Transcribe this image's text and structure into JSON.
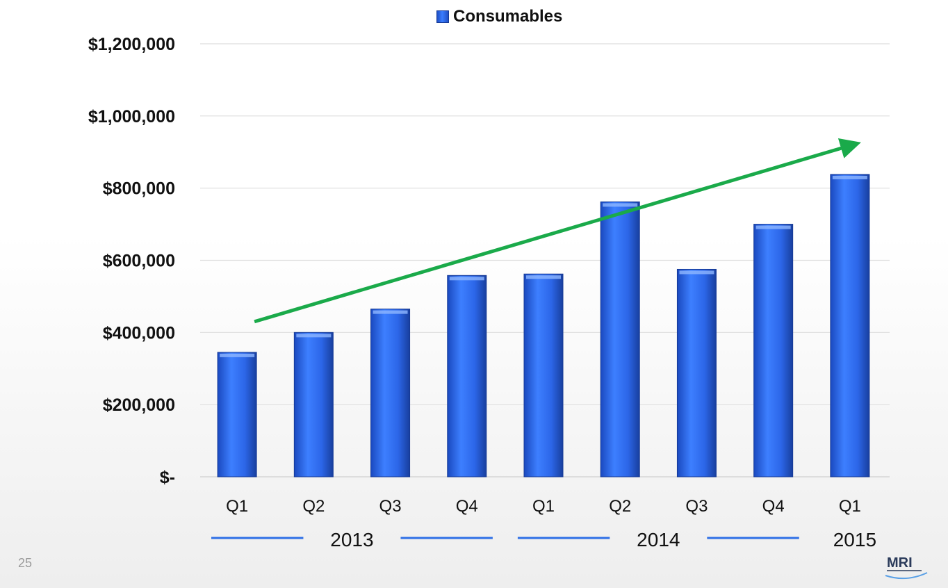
{
  "chart_data": {
    "type": "bar",
    "legend": [
      "Consumables"
    ],
    "categories": [
      "Q1",
      "Q2",
      "Q3",
      "Q4",
      "Q1",
      "Q2",
      "Q3",
      "Q4",
      "Q1"
    ],
    "years": [
      "2013",
      "2014",
      "2015"
    ],
    "series": [
      {
        "name": "Consumables",
        "values": [
          345000,
          400000,
          465000,
          558000,
          562000,
          762000,
          575000,
          700000,
          838000
        ]
      }
    ],
    "yticks": [
      "$-",
      "$200,000",
      "$400,000",
      "$600,000",
      "$800,000",
      "$1,000,000",
      "$1,200,000"
    ],
    "ylim": [
      0,
      1200000
    ],
    "grid": true,
    "legend_position": "top-center",
    "trend_arrow": {
      "from": 430000,
      "to": 920000
    },
    "colors": {
      "bar": "#2b66e6",
      "trend": "#1aaa4a",
      "year_line": "#2e6fe6"
    }
  },
  "page_number": "25",
  "logo": {
    "text": "MRI",
    "icon": "mri-logo"
  }
}
